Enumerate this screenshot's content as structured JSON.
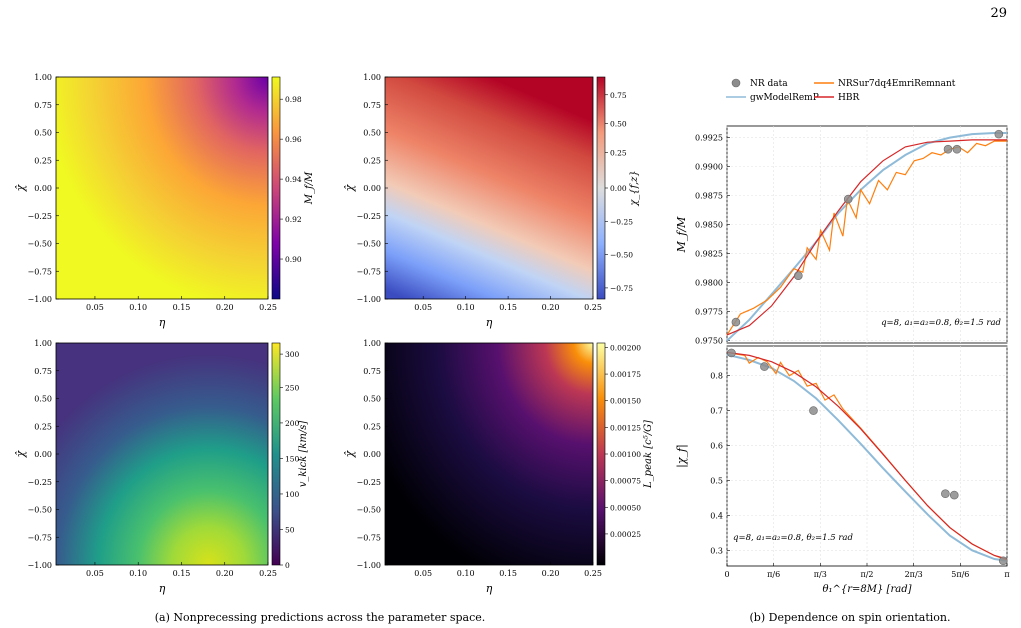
{
  "page_number": "29",
  "captions": {
    "a": "(a) Nonprecessing predictions across the parameter space.",
    "b": "(b) Dependence on spin orientation."
  },
  "heatmaps": [
    {
      "id": "mass",
      "colormap": "plasma",
      "xlabel": "η",
      "ylabel": "χ̂",
      "cbar_label": "M_f/M",
      "cbar_ticks": [
        "0.98",
        "0.96",
        "0.94",
        "0.92",
        "0.90"
      ]
    },
    {
      "id": "spin",
      "colormap": "coolwarm",
      "xlabel": "η",
      "ylabel": "χ̂",
      "cbar_label": "χ_{f,z}",
      "cbar_ticks": [
        "0.75",
        "0.50",
        "0.25",
        "0.00",
        "−0.25",
        "−0.50",
        "−0.75"
      ]
    },
    {
      "id": "kick",
      "colormap": "viridis",
      "xlabel": "η",
      "ylabel": "χ̂",
      "cbar_label": "v_kick [km/s]",
      "cbar_ticks": [
        "300",
        "250",
        "200",
        "150",
        "100",
        "50",
        "0"
      ]
    },
    {
      "id": "lpeak",
      "colormap": "inferno",
      "xlabel": "η",
      "ylabel": "χ̂",
      "cbar_label": "L_peak [c⁵/G]",
      "cbar_ticks": [
        "0.00200",
        "0.00175",
        "0.00150",
        "0.00125",
        "0.00100",
        "0.00075",
        "0.00050",
        "0.00025"
      ]
    }
  ],
  "heatmap_axes": {
    "x_ticks": [
      "0.05",
      "0.10",
      "0.15",
      "0.20",
      "0.25"
    ],
    "y_ticks": [
      "1.00",
      "0.75",
      "0.50",
      "0.25",
      "0.00",
      "−0.25",
      "−0.50",
      "−0.75",
      "−1.00"
    ]
  },
  "legend": {
    "items": [
      {
        "label": "NR data",
        "marker": "circle",
        "color": "#8c8c8c"
      },
      {
        "label": "NRSur7dq4EmriRemnant",
        "marker": "line",
        "color": "#ff7f0e"
      },
      {
        "label": "gwModelRemP",
        "marker": "line",
        "color": "#8fbbd9"
      },
      {
        "label": "HBR",
        "marker": "line",
        "color": "#d62728"
      }
    ]
  },
  "annotation": "q=8,  a₁=a₂=0.8,  θ₂=1.5 rad",
  "chart_data": [
    {
      "type": "line",
      "ylabel": "M_f/M",
      "ylim": [
        0.9748,
        0.9935
      ],
      "yticks": [
        "0.9925",
        "0.9900",
        "0.9875",
        "0.9850",
        "0.9825",
        "0.9800",
        "0.9775",
        "0.9750"
      ],
      "xlim": [
        0,
        3.1416
      ],
      "series": [
        {
          "name": "NR data",
          "x": [
            0.1,
            0.8,
            1.36,
            2.48,
            2.58,
            3.05
          ],
          "y": [
            0.9766,
            0.9806,
            0.9872,
            0.9915,
            0.9915,
            0.9928
          ]
        },
        {
          "name": "gwModelRemP",
          "x": [
            0.0,
            0.25,
            0.5,
            0.75,
            1.0,
            1.25,
            1.5,
            1.75,
            2.0,
            2.25,
            2.5,
            2.75,
            3.0,
            3.1416
          ],
          "y": [
            0.975,
            0.9768,
            0.979,
            0.9812,
            0.9835,
            0.986,
            0.988,
            0.9897,
            0.991,
            0.992,
            0.9925,
            0.9928,
            0.9929,
            0.9929
          ]
        },
        {
          "name": "HBR",
          "x": [
            0.0,
            0.25,
            0.5,
            0.75,
            1.0,
            1.25,
            1.5,
            1.75,
            2.0,
            2.25,
            2.5,
            2.75,
            3.0,
            3.1416
          ],
          "y": [
            0.9755,
            0.9763,
            0.978,
            0.9805,
            0.9835,
            0.9862,
            0.9887,
            0.9905,
            0.9917,
            0.9921,
            0.9922,
            0.9923,
            0.9923,
            0.9923
          ]
        },
        {
          "name": "NRSur7dq4EmriRemnant",
          "x": [
            0.0,
            0.15,
            0.3,
            0.45,
            0.6,
            0.75,
            0.85,
            0.9,
            1.0,
            1.05,
            1.15,
            1.2,
            1.3,
            1.35,
            1.45,
            1.5,
            1.6,
            1.7,
            1.8,
            1.9,
            2.0,
            2.1,
            2.2,
            2.3,
            2.4,
            2.5,
            2.6,
            2.7,
            2.8,
            2.9,
            3.0,
            3.1416
          ],
          "y": [
            0.9755,
            0.9773,
            0.9778,
            0.9785,
            0.9796,
            0.9812,
            0.9809,
            0.983,
            0.982,
            0.9845,
            0.9828,
            0.986,
            0.984,
            0.9872,
            0.9856,
            0.988,
            0.9868,
            0.9888,
            0.988,
            0.9895,
            0.9893,
            0.9905,
            0.9907,
            0.9912,
            0.991,
            0.9915,
            0.9917,
            0.9912,
            0.992,
            0.9918,
            0.9922,
            0.9922
          ]
        }
      ]
    },
    {
      "type": "line",
      "ylabel": "|χ_f|",
      "xlabel": "θ₁^{r=8M} [rad]",
      "ylim": [
        0.255,
        0.885
      ],
      "yticks": [
        "0.8",
        "0.7",
        "0.6",
        "0.5",
        "0.4",
        "0.3"
      ],
      "xlim": [
        0,
        3.1416
      ],
      "xticks": [
        "0",
        "π/6",
        "π/3",
        "π/2",
        "2π/3",
        "5π/6",
        "π"
      ],
      "series": [
        {
          "name": "NR data",
          "x": [
            0.05,
            0.42,
            0.97,
            2.45,
            2.55,
            3.1
          ],
          "y": [
            0.865,
            0.826,
            0.7,
            0.462,
            0.458,
            0.27
          ]
        },
        {
          "name": "gwModelRemP",
          "x": [
            0.0,
            0.25,
            0.5,
            0.75,
            1.0,
            1.25,
            1.5,
            1.75,
            2.0,
            2.25,
            2.5,
            2.75,
            3.0,
            3.1416
          ],
          "y": [
            0.86,
            0.845,
            0.822,
            0.785,
            0.735,
            0.672,
            0.605,
            0.535,
            0.468,
            0.403,
            0.342,
            0.3,
            0.275,
            0.27
          ]
        },
        {
          "name": "HBR",
          "x": [
            0.0,
            0.25,
            0.5,
            0.75,
            1.0,
            1.25,
            1.5,
            1.75,
            2.0,
            2.25,
            2.5,
            2.75,
            3.0,
            3.1416
          ],
          "y": [
            0.867,
            0.858,
            0.84,
            0.81,
            0.768,
            0.712,
            0.648,
            0.575,
            0.5,
            0.428,
            0.365,
            0.318,
            0.285,
            0.275
          ]
        },
        {
          "name": "NRSur7dq4EmriRemnant",
          "x": [
            0.0,
            0.1,
            0.2,
            0.25,
            0.35,
            0.45,
            0.55,
            0.6,
            0.7,
            0.8,
            0.9,
            1.0,
            1.1,
            1.2,
            1.3,
            1.5,
            1.75,
            2.0,
            2.25,
            2.5,
            2.75,
            3.0,
            3.1416
          ],
          "y": [
            0.867,
            0.862,
            0.858,
            0.836,
            0.852,
            0.84,
            0.806,
            0.838,
            0.8,
            0.815,
            0.77,
            0.778,
            0.73,
            0.745,
            0.705,
            0.65,
            0.576,
            0.5,
            0.428,
            0.365,
            0.318,
            0.285,
            0.272
          ]
        }
      ]
    }
  ]
}
